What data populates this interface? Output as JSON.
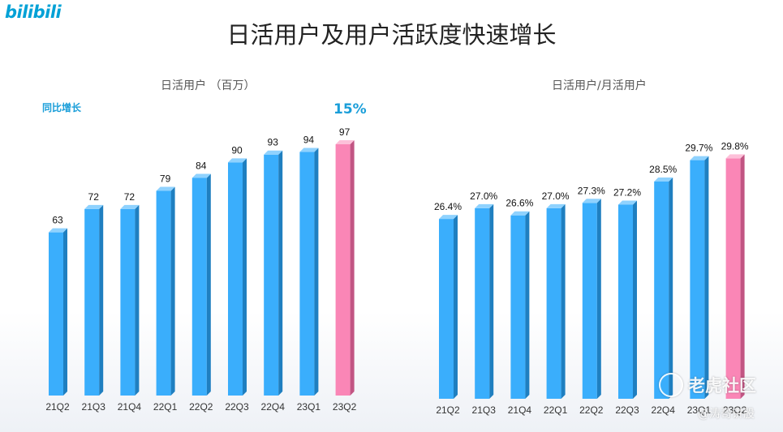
{
  "logo_text": "bilibili",
  "title": "日活用户及用户活跃度快速增长",
  "watermark": {
    "brand": "老虎社区",
    "author": "@涛哥讲股",
    "icon": "tiger-logo-icon"
  },
  "colors": {
    "bar": "#3aaefc",
    "bar_side": "#1f7fc0",
    "bar_top": "#8fd2fe",
    "highlight": "#fa86b6",
    "highlight_side": "#c25583",
    "highlight_top": "#fdc0d9",
    "accent_text": "#1a9ed9"
  },
  "chart_data": [
    {
      "type": "bar",
      "title": "日活用户 （百万）",
      "annotation_label": "同比增长",
      "annotation_value": "15%",
      "categories": [
        "21Q2",
        "21Q3",
        "21Q4",
        "22Q1",
        "22Q2",
        "22Q3",
        "22Q4",
        "23Q1",
        "23Q2"
      ],
      "values": [
        63,
        72,
        72,
        79,
        84,
        90,
        93,
        94,
        97
      ],
      "labels": [
        "63",
        "72",
        "72",
        "79",
        "84",
        "90",
        "93",
        "94",
        "97"
      ],
      "highlight_index": 8,
      "ylim": [
        0,
        112
      ],
      "grid": false,
      "legend": "none"
    },
    {
      "type": "bar",
      "title": "日活用户/月活用户",
      "categories": [
        "21Q2",
        "21Q3",
        "21Q4",
        "22Q1",
        "22Q2",
        "22Q3",
        "22Q4",
        "23Q1",
        "23Q2"
      ],
      "values": [
        26.4,
        27.0,
        26.6,
        27.0,
        27.3,
        27.2,
        28.5,
        29.7,
        29.8
      ],
      "labels": [
        "26.4%",
        "27.0%",
        "26.6%",
        "27.0%",
        "27.3%",
        "27.2%",
        "28.5%",
        "29.7%",
        "29.8%"
      ],
      "highlight_index": 8,
      "ylim": [
        16.3,
        30.5
      ],
      "grid": false,
      "legend": "none"
    }
  ]
}
